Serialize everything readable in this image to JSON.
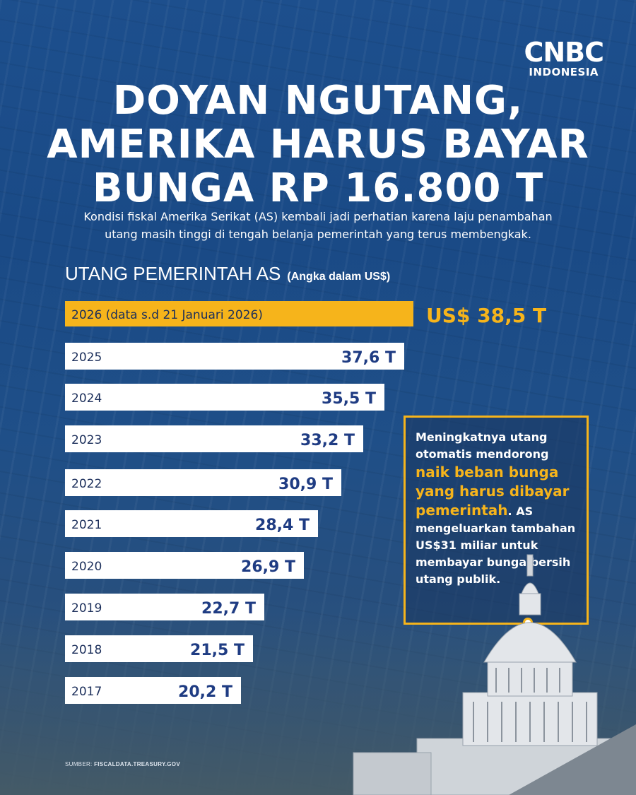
{
  "brand": {
    "name": "CNBC",
    "sub": "INDONESIA"
  },
  "title": {
    "line1": "DOYAN NGUTANG,",
    "line2": "AMERIKA HARUS BAYAR",
    "line3": "BUNGA RP 16.800 T"
  },
  "subtitle": {
    "line1": "Kondisi fiskal Amerika Serikat (AS) kembali jadi perhatian karena laju penambahan",
    "line2": "utang masih tinggi di tengah belanja pemerintah yang terus membengkak."
  },
  "chart_heading": {
    "main": "UTANG PEMERINTAH AS",
    "unit": "(Angka dalam US$)"
  },
  "chart_data": {
    "type": "bar",
    "orientation": "horizontal",
    "title": "UTANG PEMERINTAH AS",
    "unit_note": "(Angka dalam US$)",
    "categories": [
      "2026 (data s.d 21 Januari 2026)",
      "2025",
      "2024",
      "2023",
      "2022",
      "2021",
      "2020",
      "2019",
      "2018",
      "2017"
    ],
    "values": [
      38.5,
      37.6,
      35.5,
      33.2,
      30.9,
      28.4,
      26.9,
      22.7,
      21.5,
      20.2
    ],
    "value_labels": [
      "US$ 38,5 T",
      "37,6 T",
      "35,5 T",
      "33,2 T",
      "30,9 T",
      "28,4 T",
      "26,9 T",
      "22,7 T",
      "21,5 T",
      "20,2 T"
    ],
    "highlight_index": 0,
    "colors": {
      "highlight": "#f6b41b",
      "bar": "#ffffff",
      "value_text": "#1f3c83",
      "label_text": "#1c2f5b"
    }
  },
  "note": {
    "part1": "Meningkatnya utang otomatis mendorong ",
    "highlight": "naik beban bunga yang harus dibayar pemerintah",
    "part2": ". AS mengeluarkan tambahan US$31 miliar untuk membayar bunga bersih utang publik."
  },
  "source": {
    "label": "SUMBER:",
    "value": "FISCALDATA.TREASURY.GOV"
  },
  "colors": {
    "background": "#1d4f8d",
    "accent": "#f6b41b",
    "text": "#ffffff"
  },
  "icons": {
    "illustration": "capitol-building-icon"
  }
}
